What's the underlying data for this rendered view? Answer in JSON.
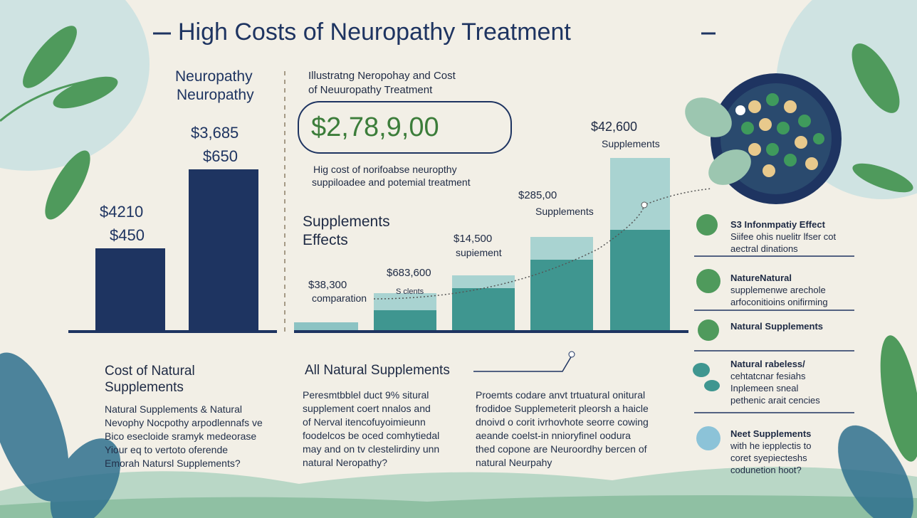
{
  "title": "High Costs of Neuropathy Treatment",
  "left_panel": {
    "heading": [
      "Neuropathy",
      "Neuropathy"
    ],
    "bar_labels": [
      "$3,685",
      "$650",
      "$4210",
      "$450"
    ]
  },
  "middle_panel": {
    "subtitle": [
      "Illustratng Neropohay and Cost",
      "of Neuuropathy Treatment"
    ],
    "highlight": "$2,78,9,00",
    "description": [
      "Hig cost of norifoabse neuropthy",
      "suppiloadee and potemial treatment"
    ],
    "section": [
      "Supplements",
      "Effects"
    ],
    "bar_labels": [
      [
        "$38,300",
        "comparation"
      ],
      [
        "$683,600",
        "S clents"
      ],
      [
        "$14,500",
        "supiement"
      ],
      [
        "$285,00",
        "Supplements"
      ],
      [
        "$42,600",
        "Supplements"
      ]
    ]
  },
  "right_list": [
    [
      "S3 Infonmpatiy Effect",
      "Siifee ohis nuelitr lfser cot",
      "aectral dinations"
    ],
    [
      "NatureNatural",
      "supplemenwe arechole",
      "arfoconitioins onifirming"
    ],
    [
      "Natural Supplements"
    ],
    [
      "Natural rabeless/",
      "cehtatcnar fesiahs",
      "Inplemeen sneal",
      "pethenic arait cencies"
    ],
    [
      "Neet Supplements",
      "with he iepplectis to",
      "coret syepiecteshs",
      "codunetion hoot?"
    ]
  ],
  "bottom": {
    "left": {
      "heading": [
        "Cost of Natural",
        "Supplements"
      ],
      "body": [
        "Natural Supplements & Natural",
        "Nevophy Nocpothy arpodlennafs ve",
        "Bico esecloide sramyk medeorase",
        "Yiour eq to vertoto oferende",
        "Emorah Natursl Supplements?"
      ]
    },
    "middle": {
      "heading": "All Natural Supplements",
      "columns": [
        [
          "Peresmtbblel duct 9% situral",
          "supplement coert nnalos and",
          "of Nerval itencofuyoimieunn",
          "foodelcos be oced comhytiedal",
          "may and on tv clestelirdiny unn",
          "natural Neropathy?"
        ],
        [
          "Proemts codare anvt trtuatural onitural",
          "frodidoe Supplemeterit pleorsh a haicle",
          "dnoivd o corit ivrhovhote seorre cowing",
          "aeande coelst-in nnioryfinel oodura",
          "thed copone are Neuroordhy bercen of",
          "natural Neurpahy"
        ]
      ]
    }
  }
}
